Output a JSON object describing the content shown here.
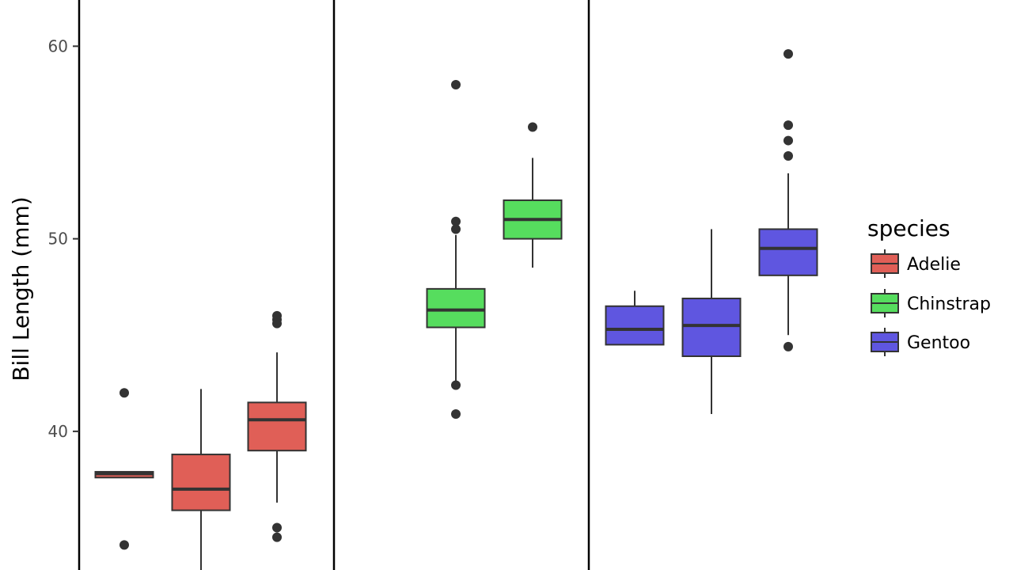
{
  "chart_data": {
    "type": "boxplot",
    "ylabel": "Bill Length (mm)",
    "ylim": [
      32.8,
      62.4
    ],
    "yticks": [
      40,
      50,
      60
    ],
    "grid": false,
    "legend": {
      "title": "species",
      "placement": "right",
      "entries": [
        "Adelie",
        "Chinstrap",
        "Gentoo"
      ]
    },
    "series": [
      {
        "name": "Adelie",
        "color": "#E05F57",
        "boxes": [
          {
            "q1": 37.6,
            "median": 37.8,
            "q3": 37.9,
            "whisker_low": 37.6,
            "whisker_high": 37.9,
            "outliers": [
              42.0,
              34.1
            ]
          },
          {
            "q1": 35.9,
            "median": 37.0,
            "q3": 38.8,
            "whisker_low": 32.1,
            "whisker_high": 42.2,
            "outliers": []
          },
          {
            "q1": 39.0,
            "median": 40.6,
            "q3": 41.5,
            "whisker_low": 36.3,
            "whisker_high": 44.1,
            "outliers": [
              46.0,
              45.8,
              45.6,
              35.0,
              34.5
            ]
          }
        ]
      },
      {
        "name": "Chinstrap",
        "color": "#56DD5E",
        "boxes": [
          {
            "q1": 45.4,
            "median": 46.3,
            "q3": 47.4,
            "whisker_low": 42.5,
            "whisker_high": 50.2,
            "outliers": [
              58.0,
              50.9,
              50.5,
              42.4,
              40.9
            ]
          },
          {
            "q1": 50.0,
            "median": 51.0,
            "q3": 52.0,
            "whisker_low": 48.5,
            "whisker_high": 54.2,
            "outliers": [
              55.8
            ]
          }
        ]
      },
      {
        "name": "Gentoo",
        "color": "#5F56E0",
        "boxes": [
          {
            "q1": 44.5,
            "median": 45.3,
            "q3": 46.5,
            "whisker_low": 44.5,
            "whisker_high": 47.3,
            "outliers": []
          },
          {
            "q1": 43.9,
            "median": 45.5,
            "q3": 46.9,
            "whisker_low": 40.9,
            "whisker_high": 50.5,
            "outliers": []
          },
          {
            "q1": 48.1,
            "median": 49.5,
            "q3": 50.5,
            "whisker_low": 45.0,
            "whisker_high": 53.4,
            "outliers": [
              59.6,
              55.9,
              55.1,
              54.3,
              44.4
            ]
          }
        ]
      }
    ]
  }
}
